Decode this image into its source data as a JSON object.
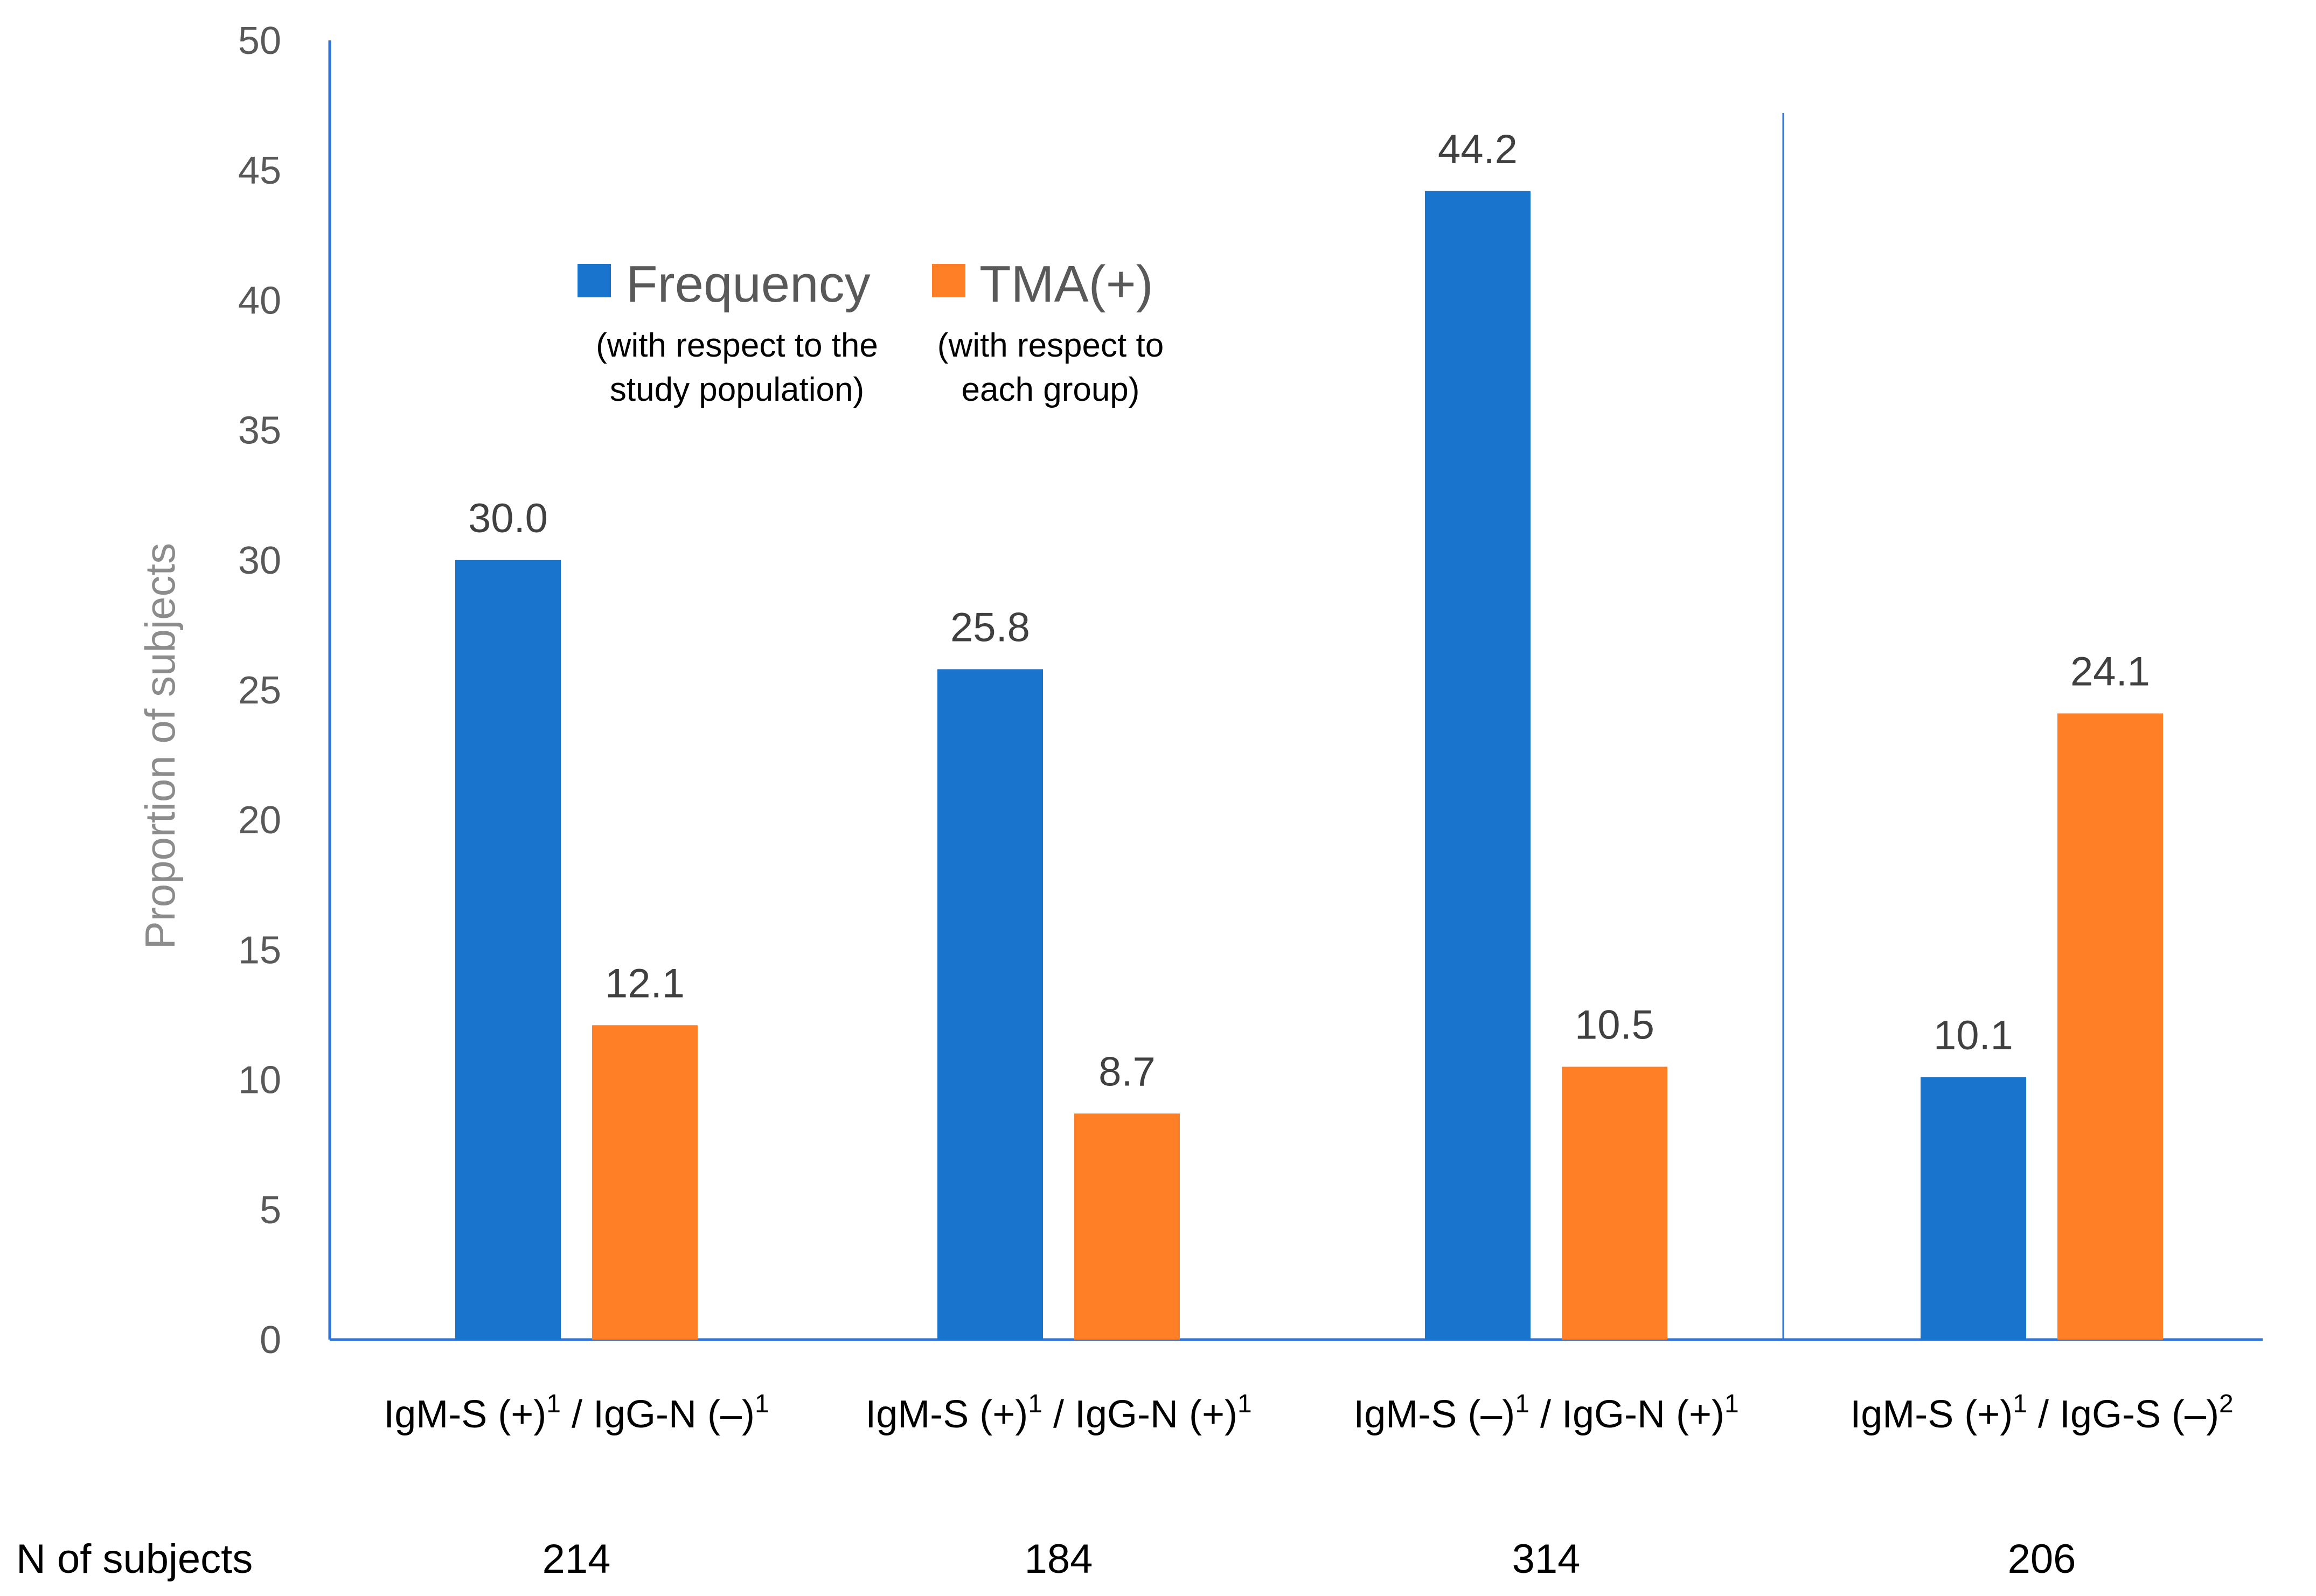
{
  "chart_data": {
    "type": "bar",
    "title": "",
    "xlabel": "",
    "ylabel": "Proportion of subjects",
    "ylim": [
      0,
      50
    ],
    "yticks": [
      0,
      5,
      10,
      15,
      20,
      25,
      30,
      35,
      40,
      45,
      50
    ],
    "grid": false,
    "categories": [
      {
        "main1": "IgM-S (+)",
        "sup1": "1",
        "main2": " / IgG-N (–)",
        "sup2": "1"
      },
      {
        "main1": "IgM-S (+)",
        "sup1": "1",
        "main2": " / IgG-N (+)",
        "sup2": "1"
      },
      {
        "main1": "IgM-S (–)",
        "sup1": "1",
        "main2": " / IgG-N (+)",
        "sup2": "1"
      },
      {
        "main1": "IgM-S (+)",
        "sup1": "1",
        "main2": " / IgG-S (–)",
        "sup2": "2"
      }
    ],
    "series": [
      {
        "name": "Frequency",
        "subtitle": [
          "(with respect to the",
          "study population)"
        ],
        "color": "#1874CD",
        "values": [
          30.0,
          25.8,
          44.2,
          10.1
        ]
      },
      {
        "name": "TMA(+)",
        "subtitle": [
          "(with respect to",
          "each group)"
        ],
        "color": "#FF7F27",
        "values": [
          12.1,
          8.7,
          10.5,
          24.1
        ]
      }
    ],
    "n_row": {
      "label": "N of subjects",
      "values": [
        "214",
        "184",
        "314",
        "206"
      ]
    },
    "legend_position": "top-center",
    "separator_after_category": 3
  }
}
